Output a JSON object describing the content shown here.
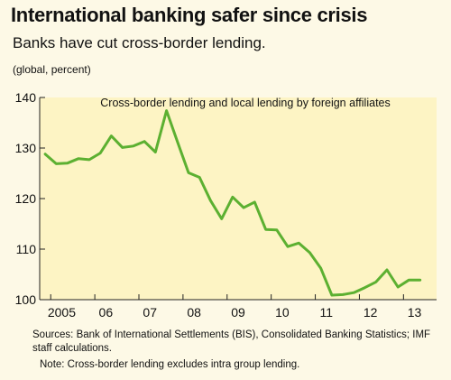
{
  "header": {
    "title": "International banking safer since crisis",
    "subtitle": "Banks have cut cross-border lending.",
    "unit": "(global, percent)"
  },
  "footer": {
    "sources": "Sources: Bank of International Settlements (BIS), Consolidated Banking Statistics; IMF staff calculations.",
    "note": "Note: Cross-border lending excludes intra group lending."
  },
  "colors": {
    "line": "#5cb031",
    "plot_background": "#fdf4c4",
    "page_background": "#fdf9e6"
  },
  "chart_data": {
    "type": "line",
    "title": "Cross-border lending and local lending by foreign affiliates",
    "xlabel": "",
    "ylabel": "",
    "ylim": [
      100,
      140
    ],
    "xlim": [
      2004.75,
      2013.75
    ],
    "yticks": [
      100,
      110,
      120,
      130,
      140
    ],
    "grid": false,
    "xticks": [
      {
        "label": "2005",
        "x": 2005.25
      },
      {
        "label": "06",
        "x": 2006.25
      },
      {
        "label": "07",
        "x": 2007.25
      },
      {
        "label": "08",
        "x": 2008.25
      },
      {
        "label": "09",
        "x": 2009.25
      },
      {
        "label": "10",
        "x": 2010.25
      },
      {
        "label": "11",
        "x": 2011.25
      },
      {
        "label": "12",
        "x": 2012.25
      },
      {
        "label": "13",
        "x": 2013.25
      }
    ],
    "series": [
      {
        "x": [
          2004.875,
          2005.125,
          2005.375,
          2005.625,
          2005.875,
          2006.125,
          2006.375,
          2006.625,
          2006.875,
          2007.125,
          2007.375,
          2007.625,
          2007.875,
          2008.125,
          2008.375,
          2008.625,
          2008.875,
          2009.125,
          2009.375,
          2009.625,
          2009.875,
          2010.125,
          2010.375,
          2010.625,
          2010.875,
          2011.125,
          2011.375,
          2011.625,
          2011.875,
          2012.125,
          2012.375,
          2012.625,
          2012.875,
          2013.125,
          2013.375
        ],
        "y": [
          128.8,
          126.9,
          127.0,
          127.9,
          127.7,
          129.0,
          132.4,
          130.1,
          130.4,
          131.3,
          129.2,
          137.4,
          131.2,
          125.1,
          124.2,
          119.6,
          116.0,
          120.3,
          118.2,
          119.3,
          113.9,
          113.8,
          110.5,
          111.2,
          109.3,
          106.2,
          100.9,
          101.0,
          101.4,
          102.4,
          103.5,
          105.9,
          102.5,
          103.9,
          103.9
        ]
      }
    ]
  }
}
